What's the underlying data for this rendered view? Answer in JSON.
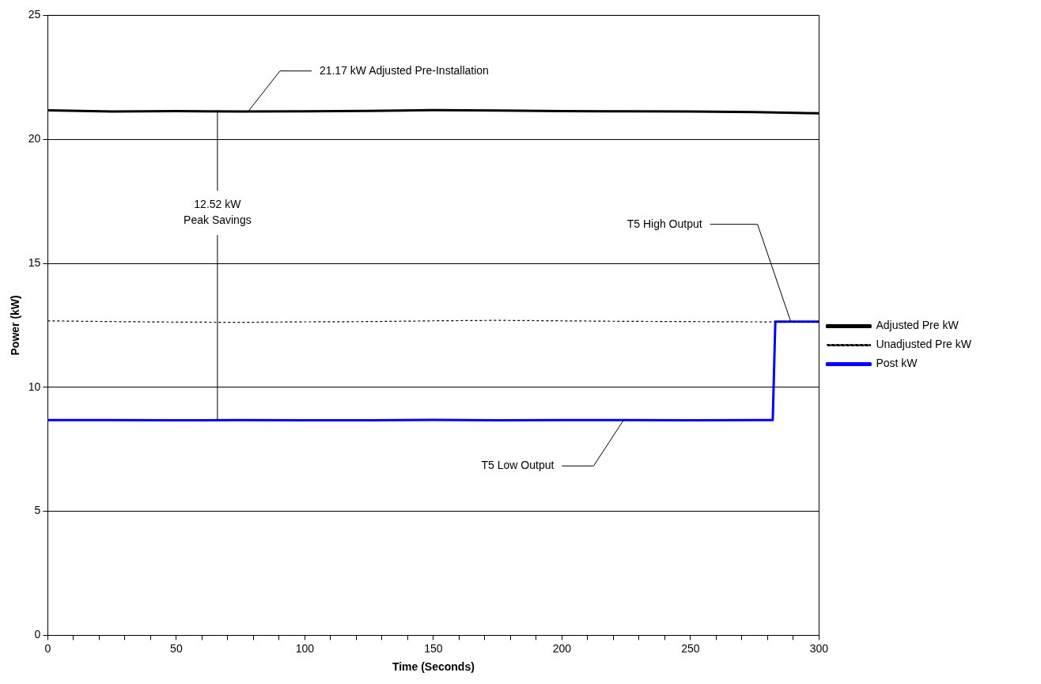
{
  "chart_data": {
    "type": "line",
    "xlabel": "Time (Seconds)",
    "ylabel": "Power (kW)",
    "xlim": [
      0,
      300
    ],
    "ylim": [
      0,
      25
    ],
    "xticks": [
      0,
      {
        "value": 10,
        "label": null
      },
      {
        "value": 20,
        "label": null
      },
      {
        "value": 30,
        "label": null
      },
      {
        "value": 40,
        "label": null
      },
      50,
      {
        "value": 60,
        "label": null
      },
      {
        "value": 70,
        "label": null
      },
      {
        "value": 80,
        "label": null
      },
      {
        "value": 90,
        "label": null
      },
      100,
      {
        "value": 110,
        "label": null
      },
      {
        "value": 120,
        "label": null
      },
      {
        "value": 130,
        "label": null
      },
      {
        "value": 140,
        "label": null
      },
      150,
      {
        "value": 160,
        "label": null
      },
      {
        "value": 170,
        "label": null
      },
      {
        "value": 180,
        "label": null
      },
      {
        "value": 190,
        "label": null
      },
      200,
      {
        "value": 210,
        "label": null
      },
      {
        "value": 220,
        "label": null
      },
      {
        "value": 230,
        "label": null
      },
      {
        "value": 240,
        "label": null
      },
      250,
      {
        "value": 260,
        "label": null
      },
      {
        "value": 270,
        "label": null
      },
      {
        "value": 280,
        "label": null
      },
      {
        "value": 290,
        "label": null
      },
      300
    ],
    "yticks": [
      0,
      5,
      10,
      15,
      20,
      25
    ],
    "grid": "y",
    "legend": "right",
    "marker": "none",
    "series": [
      {
        "name": "Adjusted Pre kW",
        "color": "#000000",
        "line_style": "solid",
        "x": [
          0,
          25,
          50,
          75,
          100,
          125,
          150,
          175,
          200,
          225,
          250,
          275,
          300
        ],
        "values": [
          21.17,
          21.12,
          21.14,
          21.12,
          21.13,
          21.15,
          21.18,
          21.16,
          21.14,
          21.13,
          21.12,
          21.1,
          21.05
        ]
      },
      {
        "name": "Unadjusted Pre kW",
        "color": "#000000",
        "line_style": "dotted",
        "x": [
          0,
          25,
          50,
          75,
          100,
          125,
          150,
          175,
          200,
          225,
          250,
          275,
          300
        ],
        "values": [
          12.68,
          12.65,
          12.63,
          12.62,
          12.64,
          12.65,
          12.68,
          12.7,
          12.68,
          12.66,
          12.65,
          12.64,
          12.63
        ]
      },
      {
        "name": "Post kW",
        "color": "#0000ff",
        "line_style": "solid",
        "x": [
          0,
          25,
          50,
          75,
          100,
          125,
          150,
          175,
          200,
          225,
          250,
          275,
          282,
          283,
          300
        ],
        "values": [
          8.68,
          8.68,
          8.67,
          8.68,
          8.67,
          8.67,
          8.69,
          8.67,
          8.68,
          8.68,
          8.67,
          8.68,
          8.68,
          12.65,
          12.65
        ]
      }
    ],
    "annotations": [
      {
        "text": "21.17 kW Adjusted Pre-Installation",
        "x": 78,
        "y": 21.13
      },
      {
        "text": "12.52 kW\nPeak Savings",
        "x": 66,
        "y": 8.68
      },
      {
        "text": "T5 High Output",
        "x": 289,
        "y": 12.65
      },
      {
        "text": "T5 Low Output",
        "x": 224,
        "y": 8.68
      }
    ]
  }
}
